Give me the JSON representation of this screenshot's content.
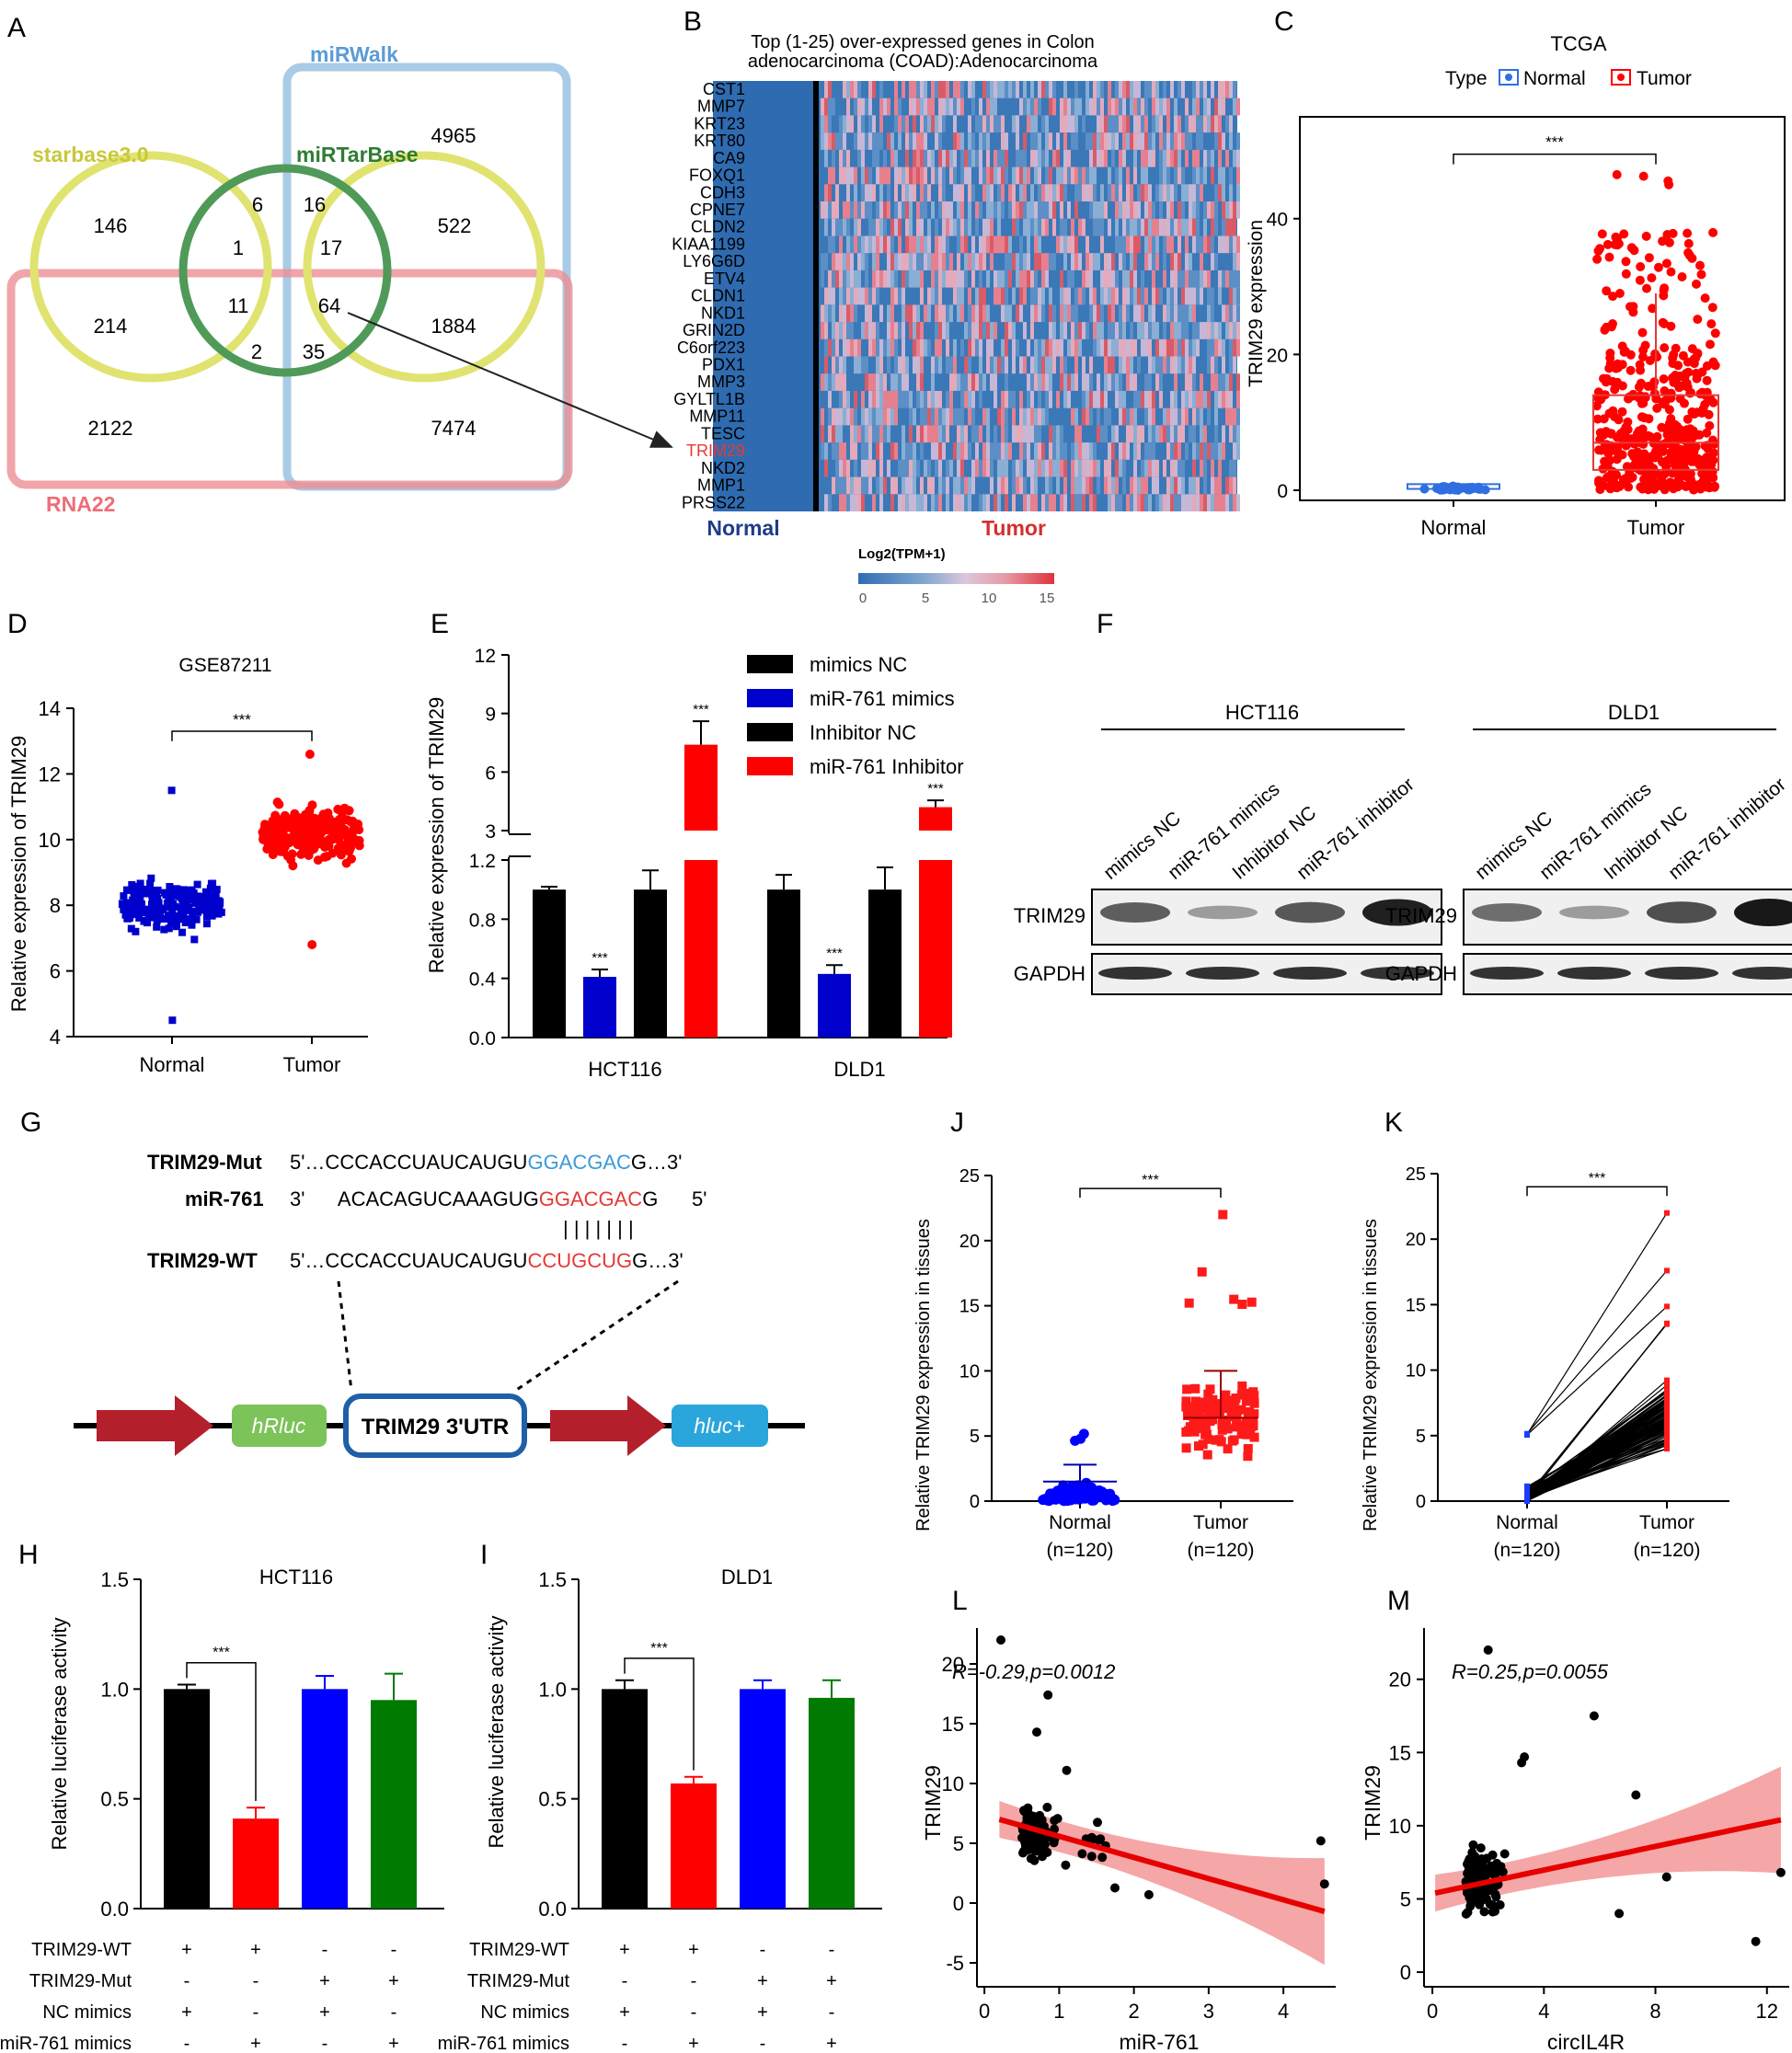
{
  "panel_letters": {
    "a": "A",
    "b": "B",
    "c": "C",
    "d": "D",
    "e": "E",
    "f": "F",
    "g": "G",
    "h": "H",
    "i": "I",
    "j": "J",
    "k": "K",
    "l": "L",
    "m": "M"
  },
  "sig": "***",
  "venn": {
    "labels": {
      "mirwalk": "miRWalk",
      "starbase": "starbase3.0",
      "mirtarbase": "miRTarBase",
      "rna22": "RNA22"
    },
    "counts": {
      "n4965": "4965",
      "n146": "146",
      "n6": "6",
      "n16": "16",
      "n522": "522",
      "n1": "1",
      "n17": "17",
      "n214": "214",
      "n11": "11",
      "n64": "64",
      "n1884": "1884",
      "n2": "2",
      "n35": "35",
      "n2122": "2122",
      "n7474": "7474"
    },
    "colors": {
      "mirwalk": "#a9cbe6",
      "starbase": "#e0e36f",
      "mirtarbase": "#4f9a58",
      "rna22": "#ec8e95"
    }
  },
  "heatmap": {
    "title_line1": "Top (1-25) over-expressed genes in Colon",
    "title_line2": "adenocarcinoma (COAD):Adenocarcinoma",
    "genes": [
      "CST1",
      "MMP7",
      "KRT23",
      "KRT80",
      "CA9",
      "FOXQ1",
      "CDH3",
      "CPNE7",
      "CLDN2",
      "KIAA1199",
      "LY6G6D",
      "ETV4",
      "CLDN1",
      "NKD1",
      "GRIN2D",
      "C6orf223",
      "PDX1",
      "MMP3",
      "GYLTL1B",
      "MMP11",
      "TESC",
      "TRIM29",
      "NKD2",
      "MMP1",
      "PRSS22"
    ],
    "highlight_gene": "TRIM29",
    "group_normal": "Normal",
    "group_tumor": "Tumor",
    "legend_title": "Log2(TPM+1)",
    "legend_ticks": [
      "0",
      "5",
      "10",
      "15"
    ]
  },
  "chart_data": [
    {
      "panel": "C",
      "type": "scatter",
      "title": "TCGA",
      "legend_title": "Type",
      "series": [
        {
          "name": "Normal",
          "color": "#2f6fe0",
          "median": 0.5,
          "q1": 0.2,
          "q3": 0.9
        },
        {
          "name": "Tumor",
          "color": "#ff0000",
          "median": 7,
          "q1": 3,
          "q3": 14,
          "whisker_high": 29
        }
      ],
      "categories": [
        "Normal",
        "Tumor"
      ],
      "ylabel": "TRIM29 expression",
      "yticks": [
        "0",
        "20",
        "40"
      ],
      "ylim": [
        0,
        55
      ]
    },
    {
      "panel": "D",
      "type": "scatter",
      "title": "GSE87211",
      "categories": [
        "Normal",
        "Tumor"
      ],
      "ylabel": "Relative expression of TRIM29",
      "yticks": [
        "4",
        "6",
        "8",
        "10",
        "12",
        "14"
      ],
      "ylim": [
        4,
        14
      ],
      "series": [
        {
          "name": "Normal",
          "color": "#0000cc",
          "range": [
            4.5,
            11.5
          ],
          "center": 8
        },
        {
          "name": "Tumor",
          "color": "#ff0000",
          "range": [
            6.8,
            12.6
          ],
          "center": 10.2
        }
      ]
    },
    {
      "panel": "E",
      "type": "bar",
      "ylabel": "Relative expression of TRIM29",
      "categories": [
        "HCT116",
        "DLD1"
      ],
      "series": [
        {
          "name": "mimics NC",
          "color": "#000000",
          "values": [
            1.0,
            1.0
          ],
          "err": [
            0.02,
            0.1
          ]
        },
        {
          "name": "miR-761 mimics",
          "color": "#0000cc",
          "values": [
            0.41,
            0.43
          ],
          "err": [
            0.05,
            0.06
          ]
        },
        {
          "name": "Inhibitor NC",
          "color": "#000000",
          "values": [
            1.0,
            1.0
          ],
          "err": [
            0.13,
            0.15
          ]
        },
        {
          "name": "miR-761 Inhibitor",
          "color": "#ff0000",
          "values": [
            7.4,
            4.2
          ],
          "err": [
            1.2,
            0.35
          ]
        }
      ],
      "yticks_low": [
        "0.0",
        "0.4",
        "0.8",
        "1.2"
      ],
      "yticks_high": [
        "3",
        "6",
        "9",
        "12"
      ],
      "axis_break": [
        1.2,
        3
      ]
    },
    {
      "panel": "H",
      "type": "bar",
      "title": "HCT116",
      "ylabel": "Relative luciferase activity",
      "values": [
        1.0,
        0.41,
        1.0,
        0.95
      ],
      "err": [
        0.02,
        0.05,
        0.06,
        0.12
      ],
      "colors": [
        "#000000",
        "#ff0000",
        "#0000ff",
        "#007a00"
      ],
      "ylim": [
        0,
        1.5
      ],
      "yticks": [
        "0.0",
        "0.5",
        "1.0",
        "1.5"
      ]
    },
    {
      "panel": "I",
      "type": "bar",
      "title": "DLD1",
      "ylabel": "Relative luciferase activity",
      "values": [
        1.0,
        0.57,
        1.0,
        0.96
      ],
      "err": [
        0.04,
        0.03,
        0.04,
        0.08
      ],
      "colors": [
        "#000000",
        "#ff0000",
        "#0000ff",
        "#007a00"
      ],
      "ylim": [
        0,
        1.5
      ],
      "yticks": [
        "0.0",
        "0.5",
        "1.0",
        "1.5"
      ]
    },
    {
      "panel": "J",
      "type": "scatter",
      "ylabel": "Relative TRIM29 expression in tissues",
      "categories": [
        "Normal",
        "Tumor"
      ],
      "category_n": [
        "(n=120)",
        "(n=120)"
      ],
      "yticks": [
        "0",
        "5",
        "10",
        "15",
        "20",
        "25"
      ],
      "ylim": [
        0,
        25
      ],
      "series": [
        {
          "name": "Normal",
          "color": "#0000ff",
          "mean": 1.5,
          "sd_high": 2.8,
          "max": 6
        },
        {
          "name": "Tumor",
          "color": "#ff0000",
          "mean": 6.4,
          "sd_high": 10,
          "max": 22
        }
      ]
    },
    {
      "panel": "K",
      "type": "line",
      "ylabel": "Relative TRIM29 expression in tissues",
      "categories": [
        "Normal",
        "Tumor"
      ],
      "category_n": [
        "(n=120)",
        "(n=120)"
      ],
      "yticks": [
        "0",
        "5",
        "10",
        "15",
        "20",
        "25"
      ],
      "ylim": [
        0,
        25
      ]
    },
    {
      "panel": "L",
      "type": "scatter",
      "annotation": "R=-0.29,p=0.0012",
      "xlabel": "miR-761",
      "ylabel": "TRIM29",
      "xticks": [
        "0",
        "1",
        "2",
        "3",
        "4"
      ],
      "yticks": [
        "-5",
        "0",
        "5",
        "10",
        "15",
        "20"
      ],
      "xlim": [
        -0.1,
        4.7
      ],
      "ylim": [
        -7,
        23
      ],
      "fit": {
        "x": [
          0.2,
          4.55
        ],
        "y": [
          7.0,
          -0.7
        ]
      }
    },
    {
      "panel": "M",
      "type": "scatter",
      "annotation": "R=0.25,p=0.0055",
      "xlabel": "circIL4R",
      "ylabel": "TRIM29",
      "xticks": [
        "0",
        "4",
        "8",
        "12"
      ],
      "yticks": [
        "0",
        "5",
        "10",
        "15",
        "20"
      ],
      "xlim": [
        -0.3,
        12.8
      ],
      "ylim": [
        -1,
        23.5
      ],
      "fit": {
        "x": [
          0.1,
          12.5
        ],
        "y": [
          5.4,
          10.4
        ]
      }
    }
  ],
  "western": {
    "lanes": [
      "mimics NC",
      "miR-761 mimics",
      "Inhibitor NC",
      "miR-761 inhibitor"
    ],
    "cell_hct": "HCT116",
    "cell_dld": "DLD1",
    "row_trim": "TRIM29",
    "row_gapdh": "GAPDH"
  },
  "construct": {
    "mut_label": "TRIM29-Mut",
    "mut_prefix": "5'…CCCACCUAUCAUGU",
    "mut_seed": "GGACGAC",
    "mut_suffix": "G…3'",
    "mir_label": "miR-761",
    "mir_prefix": "3'      ACACAGUCAAAGUG",
    "mir_seed": "GGACGAC",
    "mir_suffix": "G      5'",
    "wt_label": "TRIM29-WT",
    "wt_prefix": "5'…CCCACCUAUCAUGU",
    "wt_seed": "CCUGCUG",
    "wt_suffix": "G…3'",
    "pairing": "| | | | | | |",
    "hrluc": "hRluc",
    "utr": "TRIM29 3'UTR",
    "hluc": "hluc+"
  },
  "luc_conditions": {
    "rows": [
      "TRIM29-WT",
      "TRIM29-Mut",
      "NC mimics",
      "miR-761 mimics"
    ],
    "signs": [
      [
        "+",
        "+",
        "-",
        "-"
      ],
      [
        "-",
        "-",
        "+",
        "+"
      ],
      [
        "+",
        "-",
        "+",
        "-"
      ],
      [
        "-",
        "+",
        "-",
        "+"
      ]
    ]
  }
}
